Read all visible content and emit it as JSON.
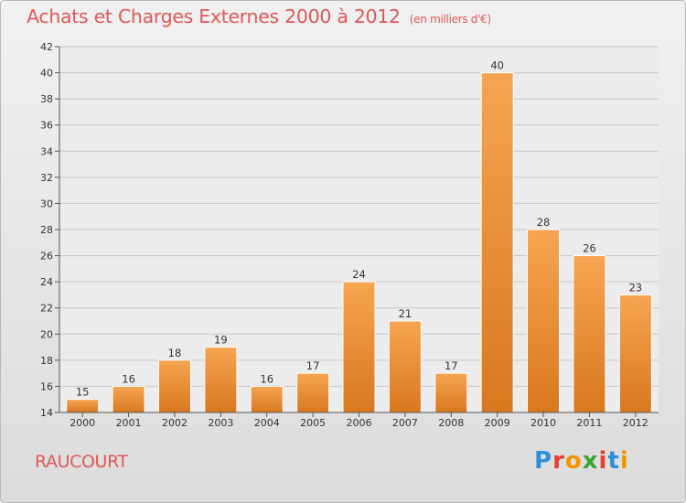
{
  "header": {
    "title": "Achats et Charges Externes 2000 à 2012",
    "unit": "(en milliers d'€)"
  },
  "footer": {
    "city": "RAUCOURT",
    "logo_text": "Proxiti",
    "logo_colors": [
      "#2f8ed8",
      "#e83f2f",
      "#f29400",
      "#3aa535",
      "#e83f2f",
      "#2f8ed8",
      "#f29400"
    ]
  },
  "colors": {
    "bar_light": "#f6a552",
    "bar_dark": "#d8781f",
    "accent": "#e05858"
  },
  "chart_data": {
    "type": "bar",
    "title": "Achats et Charges Externes 2000 à 2012",
    "subtitle": "(en milliers d'€)",
    "categories": [
      "2000",
      "2001",
      "2002",
      "2003",
      "2004",
      "2005",
      "2006",
      "2007",
      "2008",
      "2009",
      "2010",
      "2011",
      "2012"
    ],
    "values": [
      15,
      16,
      18,
      19,
      16,
      17,
      24,
      21,
      17,
      40,
      28,
      26,
      23
    ],
    "ylim": [
      14,
      42
    ],
    "yticks": [
      14,
      16,
      18,
      20,
      22,
      24,
      26,
      28,
      30,
      32,
      34,
      36,
      38,
      40,
      42
    ],
    "grid": true,
    "data_labels": true
  }
}
